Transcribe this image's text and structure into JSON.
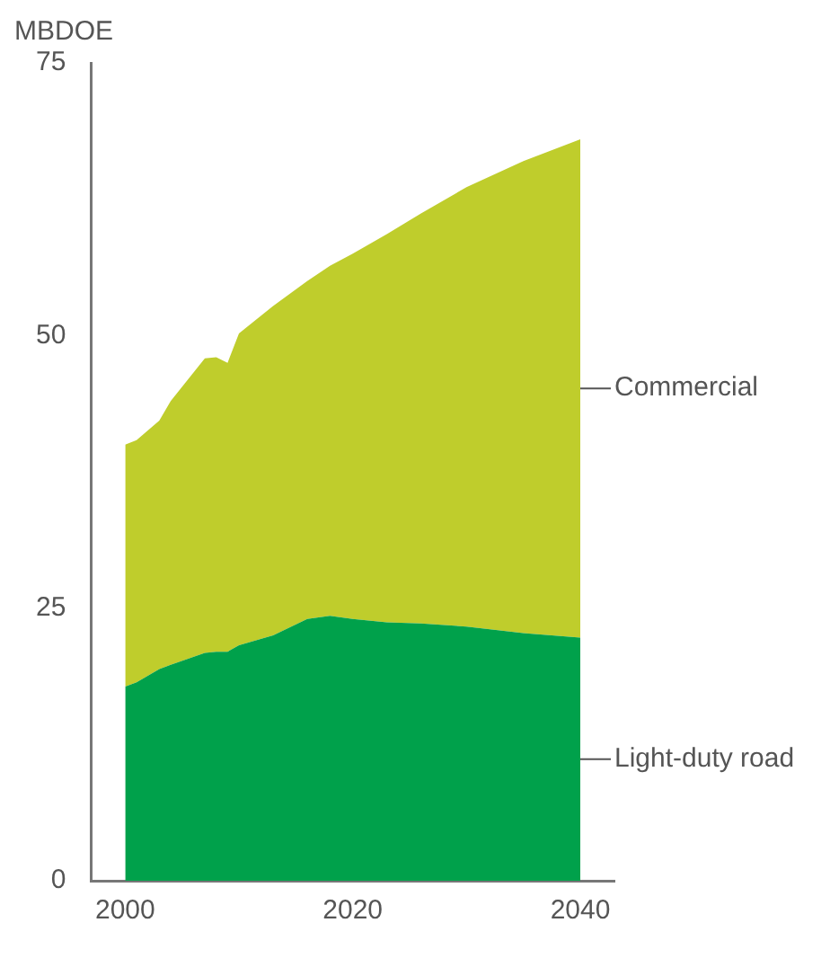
{
  "chart_data": {
    "type": "area",
    "ylabel": "MBDOE",
    "stacked": true,
    "x": [
      2000,
      2001,
      2003,
      2004,
      2007,
      2008,
      2009,
      2010,
      2013,
      2016,
      2018,
      2020,
      2023,
      2026,
      2030,
      2035,
      2040
    ],
    "series": [
      {
        "name": "Light-duty road",
        "color": "#00a14b",
        "values": [
          17.8,
          18.2,
          19.4,
          19.8,
          20.9,
          21.0,
          21.0,
          21.6,
          22.5,
          24.0,
          24.3,
          24.0,
          23.7,
          23.6,
          23.3,
          22.7,
          22.3
        ]
      },
      {
        "name": "Commercial",
        "color": "#bfcd2c",
        "values": [
          22.2,
          22.2,
          22.8,
          24.2,
          27.0,
          27.0,
          26.5,
          28.6,
          30.2,
          31.0,
          32.1,
          33.5,
          35.6,
          37.6,
          40.3,
          43.3,
          45.7
        ]
      }
    ],
    "xlim": [
      1997,
      2043
    ],
    "xticks": [
      2000,
      2020,
      2040
    ],
    "ylim": [
      0,
      75
    ],
    "yticks": [
      0,
      25,
      50,
      75
    ],
    "grid": false,
    "legend": false,
    "marker": "none"
  }
}
